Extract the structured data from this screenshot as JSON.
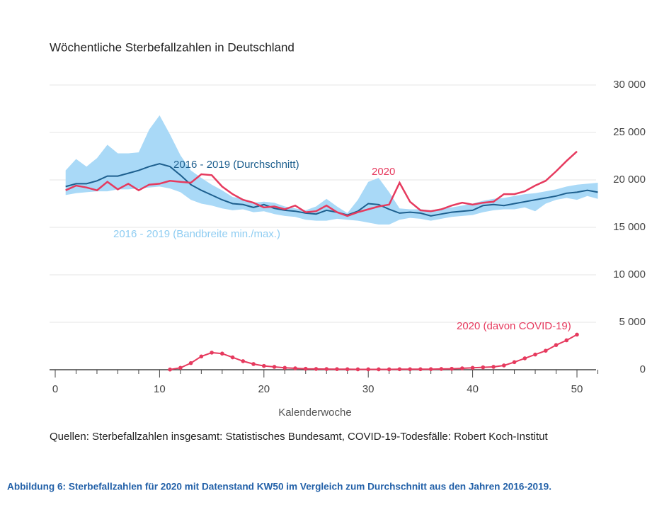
{
  "chart_data": {
    "type": "line",
    "title": "Wöchentliche Sterbefallzahlen in Deutschland",
    "x_label": "Kalenderwoche",
    "source": "Quellen: Sterbefallzahlen insgesamt: Statistisches Bundesamt, COVID-19-Todesfälle: Robert Koch-Institut",
    "caption": "Abbildung 6: Sterbefallzahlen für 2020 mit Datenstand KW50 im Vergleich zum Durchschnitt aus den Jahren 2016-2019.",
    "xlim": [
      0,
      52
    ],
    "xticks": [
      0,
      10,
      20,
      30,
      40,
      50
    ],
    "xminorticks": [
      2,
      4,
      6,
      8,
      12,
      14,
      16,
      18,
      22,
      24,
      26,
      28,
      32,
      34,
      36,
      38,
      42,
      44,
      46,
      48,
      52
    ],
    "ylim": [
      0,
      30000
    ],
    "yticks": [
      0,
      {
        "value": 5000,
        "label": "5 000"
      },
      {
        "value": 10000,
        "label": "10 000"
      },
      {
        "value": 15000,
        "label": "15 000"
      },
      {
        "value": 20000,
        "label": "20 000"
      },
      {
        "value": 25000,
        "label": "25 000"
      },
      {
        "value": 30000,
        "label": "30 000"
      }
    ],
    "grid": true,
    "series": [
      {
        "name": "2016 - 2019 (Bandbreite min./max.)",
        "kind": "band",
        "color": "#a9d9f7",
        "x": [
          1,
          2,
          3,
          4,
          5,
          6,
          7,
          8,
          9,
          10,
          11,
          12,
          13,
          14,
          15,
          16,
          17,
          18,
          19,
          20,
          21,
          22,
          23,
          24,
          25,
          26,
          27,
          28,
          29,
          30,
          31,
          32,
          33,
          34,
          35,
          36,
          37,
          38,
          39,
          40,
          41,
          42,
          43,
          44,
          45,
          46,
          47,
          48,
          49,
          50,
          51,
          52
        ],
        "high": [
          21000,
          22200,
          21400,
          22300,
          23700,
          22800,
          22800,
          22900,
          25300,
          26800,
          24800,
          22600,
          21000,
          20200,
          19500,
          18900,
          18200,
          18000,
          17600,
          17700,
          17600,
          17200,
          17000,
          16800,
          17200,
          18000,
          17200,
          16500,
          17900,
          19800,
          20200,
          18700,
          17000,
          16900,
          16900,
          16800,
          17000,
          17100,
          17300,
          17500,
          17800,
          18000,
          18100,
          18300,
          18500,
          18600,
          18800,
          19000,
          19300,
          19500,
          19600,
          19700
        ],
        "low": [
          18400,
          18600,
          18700,
          18800,
          18800,
          19000,
          19000,
          19100,
          19200,
          19300,
          19100,
          18700,
          17900,
          17500,
          17300,
          17000,
          16800,
          16900,
          16600,
          16700,
          16400,
          16200,
          16100,
          15800,
          15700,
          15700,
          15900,
          15800,
          15700,
          15500,
          15300,
          15300,
          15800,
          16000,
          15900,
          15700,
          15900,
          16100,
          16200,
          16300,
          16600,
          16800,
          16900,
          16900,
          17100,
          16700,
          17500,
          17900,
          18100,
          17900,
          18300,
          18000
        ]
      },
      {
        "name": "2016 - 2019 (Durchschnitt)",
        "kind": "line",
        "color": "#1d5f8e",
        "x": [
          1,
          2,
          3,
          4,
          5,
          6,
          7,
          8,
          9,
          10,
          11,
          12,
          13,
          14,
          15,
          16,
          17,
          18,
          19,
          20,
          21,
          22,
          23,
          24,
          25,
          26,
          27,
          28,
          29,
          30,
          31,
          32,
          33,
          34,
          35,
          36,
          37,
          38,
          39,
          40,
          41,
          42,
          43,
          44,
          45,
          46,
          47,
          48,
          49,
          50,
          51,
          52
        ],
        "values": [
          19300,
          19600,
          19600,
          19900,
          20400,
          20400,
          20700,
          21000,
          21400,
          21700,
          21400,
          20500,
          19500,
          18900,
          18400,
          17900,
          17500,
          17400,
          17100,
          17400,
          17000,
          16800,
          16700,
          16500,
          16400,
          16800,
          16600,
          16300,
          16700,
          17500,
          17400,
          16900,
          16500,
          16600,
          16500,
          16200,
          16400,
          16600,
          16700,
          16800,
          17300,
          17400,
          17300,
          17500,
          17700,
          17900,
          18100,
          18300,
          18600,
          18700,
          18900,
          18700
        ]
      },
      {
        "name": "2020",
        "kind": "line",
        "color": "#e63a5e",
        "x": [
          1,
          2,
          3,
          4,
          5,
          6,
          7,
          8,
          9,
          10,
          11,
          12,
          13,
          14,
          15,
          16,
          17,
          18,
          19,
          20,
          21,
          22,
          23,
          24,
          25,
          26,
          27,
          28,
          29,
          30,
          31,
          32,
          33,
          34,
          35,
          36,
          37,
          38,
          39,
          40,
          41,
          42,
          43,
          44,
          45,
          46,
          47,
          48,
          49,
          50
        ],
        "values": [
          18900,
          19400,
          19200,
          18900,
          19800,
          19000,
          19600,
          18900,
          19500,
          19600,
          19900,
          19800,
          19700,
          20600,
          20500,
          19300,
          18500,
          17900,
          17600,
          17100,
          17200,
          16900,
          17300,
          16600,
          16700,
          17300,
          16600,
          16200,
          16600,
          16900,
          17200,
          17400,
          19700,
          17700,
          16800,
          16700,
          16900,
          17300,
          17600,
          17400,
          17600,
          17700,
          18500,
          18500,
          18800,
          19400,
          19900,
          20900,
          22000,
          23000
        ]
      },
      {
        "name": "2020 (davon COVID-19)",
        "kind": "dots",
        "color": "#e63a5e",
        "x": [
          11,
          12,
          13,
          14,
          15,
          16,
          17,
          18,
          19,
          20,
          21,
          22,
          23,
          24,
          25,
          26,
          27,
          28,
          29,
          30,
          31,
          32,
          33,
          34,
          35,
          36,
          37,
          38,
          39,
          40,
          41,
          42,
          43,
          44,
          45,
          46,
          47,
          48,
          49,
          50
        ],
        "values": [
          20,
          200,
          700,
          1400,
          1800,
          1700,
          1300,
          900,
          600,
          400,
          300,
          200,
          150,
          100,
          80,
          70,
          60,
          50,
          40,
          40,
          40,
          40,
          50,
          50,
          50,
          60,
          80,
          100,
          150,
          200,
          250,
          300,
          450,
          800,
          1200,
          1600,
          2000,
          2600,
          3100,
          3700
        ]
      }
    ]
  }
}
